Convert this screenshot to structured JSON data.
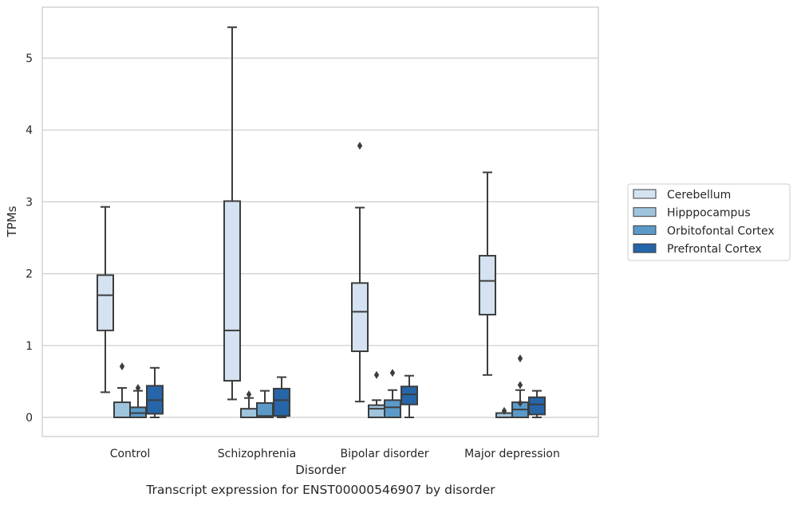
{
  "chart_data": {
    "type": "boxplot",
    "xlabel": "Disorder",
    "ylabel": "TPMs",
    "caption": "Transcript expression for ENST00000546907 by disorder",
    "ylim": [
      -0.25,
      5.7
    ],
    "yticks": [
      "0",
      "1",
      "2",
      "3",
      "4",
      "5"
    ],
    "categories": [
      "Control",
      "Schizophrenia",
      "Bipolar disorder",
      "Major depression"
    ],
    "grid": "horizontal",
    "legend_position": "right",
    "series": [
      {
        "name": "Cerebellum",
        "color": "#d4e2f1",
        "boxes": [
          {
            "whislo": 0.35,
            "q1": 1.21,
            "med": 1.7,
            "q3": 1.98,
            "whishi": 2.93,
            "fliers": []
          },
          {
            "whislo": 0.25,
            "q1": 0.51,
            "med": 1.21,
            "q3": 3.01,
            "whishi": 5.43,
            "fliers": []
          },
          {
            "whislo": 0.22,
            "q1": 0.92,
            "med": 1.47,
            "q3": 1.87,
            "whishi": 2.92,
            "fliers": [
              3.78
            ]
          },
          {
            "whislo": 0.59,
            "q1": 1.43,
            "med": 1.9,
            "q3": 2.25,
            "whishi": 3.41,
            "fliers": []
          }
        ]
      },
      {
        "name": "Hipppocampus",
        "color": "#9fc4de",
        "boxes": [
          {
            "whislo": 0.0,
            "q1": 0.0,
            "med": 0.0,
            "q3": 0.21,
            "whishi": 0.41,
            "fliers": [
              0.71
            ]
          },
          {
            "whislo": 0.0,
            "q1": 0.0,
            "med": 0.0,
            "q3": 0.12,
            "whishi": 0.27,
            "fliers": [
              0.32
            ]
          },
          {
            "whislo": 0.0,
            "q1": 0.0,
            "med": 0.12,
            "q3": 0.17,
            "whishi": 0.24,
            "fliers": [
              0.59
            ]
          },
          {
            "whislo": 0.0,
            "q1": 0.0,
            "med": 0.0,
            "q3": 0.06,
            "whishi": 0.06,
            "fliers": [
              0.09
            ]
          }
        ]
      },
      {
        "name": "Orbitofontal Cortex",
        "color": "#5b9ac8",
        "boxes": [
          {
            "whislo": 0.0,
            "q1": 0.0,
            "med": 0.06,
            "q3": 0.14,
            "whishi": 0.37,
            "fliers": [
              0.41
            ]
          },
          {
            "whislo": 0.0,
            "q1": 0.0,
            "med": 0.02,
            "q3": 0.2,
            "whishi": 0.37,
            "fliers": []
          },
          {
            "whislo": 0.0,
            "q1": 0.0,
            "med": 0.14,
            "q3": 0.24,
            "whishi": 0.38,
            "fliers": [
              0.62
            ]
          },
          {
            "whislo": 0.0,
            "q1": 0.0,
            "med": 0.11,
            "q3": 0.21,
            "whishi": 0.38,
            "fliers": [
              0.82,
              0.45,
              0.2
            ]
          }
        ]
      },
      {
        "name": "Prefrontal Cortex",
        "color": "#2565a8",
        "boxes": [
          {
            "whislo": 0.0,
            "q1": 0.05,
            "med": 0.24,
            "q3": 0.44,
            "whishi": 0.69,
            "fliers": []
          },
          {
            "whislo": 0.0,
            "q1": 0.02,
            "med": 0.24,
            "q3": 0.4,
            "whishi": 0.56,
            "fliers": []
          },
          {
            "whislo": 0.0,
            "q1": 0.18,
            "med": 0.32,
            "q3": 0.43,
            "whishi": 0.58,
            "fliers": []
          },
          {
            "whislo": 0.0,
            "q1": 0.04,
            "med": 0.18,
            "q3": 0.28,
            "whishi": 0.37,
            "fliers": []
          }
        ]
      }
    ]
  }
}
